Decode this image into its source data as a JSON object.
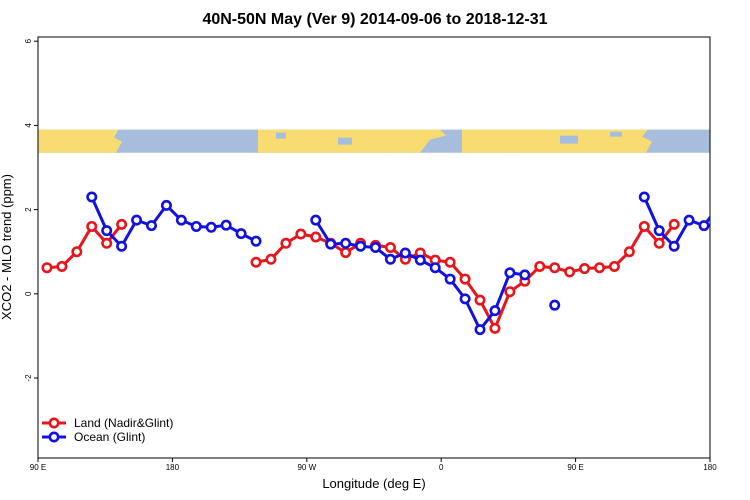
{
  "chart_data": {
    "type": "line",
    "title": "40N-50N May (Ver 9)   2014-09-06 to 2018-12-31",
    "xlabel": "Longitude (deg E)",
    "ylabel": "XCO2 - MLO trend (ppm)",
    "x_ticks": [
      {
        "value": 90,
        "label": "90 E"
      },
      {
        "value": 180,
        "label": "180"
      },
      {
        "value": 270,
        "label": "90 W"
      },
      {
        "value": 360,
        "label": "0"
      },
      {
        "value": 450,
        "label": "90 E"
      },
      {
        "value": 540,
        "label": "180"
      }
    ],
    "y_ticks": [
      {
        "value": 6,
        "label": "6"
      },
      {
        "value": 4,
        "label": "4"
      },
      {
        "value": 2,
        "label": "2"
      },
      {
        "value": 0,
        "label": "0"
      },
      {
        "value": -2,
        "label": "-2"
      }
    ],
    "xlim": [
      90,
      540
    ],
    "ylim": [
      -3.9,
      6.1
    ],
    "grid": false,
    "legend_position": "bottom-left",
    "map_strip": {
      "ymin": 3.35,
      "ymax": 3.9,
      "ocean_color": "#A6BDDB",
      "land_color": "#F8DC72"
    },
    "series": [
      {
        "name": "Land (Nadir&Glint)",
        "color": "#E8151B",
        "segments": [
          [
            [
              96,
              0.62
            ],
            [
              106,
              0.65
            ],
            [
              116,
              1.0
            ],
            [
              126,
              1.6
            ],
            [
              136,
              1.2
            ],
            [
              146,
              1.65
            ]
          ],
          [
            [
              236,
              0.75
            ],
            [
              246,
              0.82
            ],
            [
              256,
              1.2
            ],
            [
              266,
              1.42
            ],
            [
              276,
              1.35
            ],
            [
              286,
              1.2
            ],
            [
              296,
              0.98
            ],
            [
              306,
              1.2
            ]
          ],
          [
            [
              316,
              1.15
            ],
            [
              326,
              1.1
            ],
            [
              336,
              0.82
            ],
            [
              346,
              0.97
            ],
            [
              356,
              0.8
            ],
            [
              366,
              0.75
            ],
            [
              376,
              0.35
            ],
            [
              386,
              -0.15
            ],
            [
              396,
              -0.82
            ],
            [
              406,
              0.05
            ],
            [
              416,
              0.3
            ],
            [
              426,
              0.65
            ],
            [
              436,
              0.62
            ],
            [
              446,
              0.52
            ],
            [
              456,
              0.6
            ],
            [
              466,
              0.62
            ],
            [
              476,
              0.65
            ],
            [
              486,
              1.0
            ],
            [
              496,
              1.6
            ],
            [
              506,
              1.2
            ],
            [
              516,
              1.65
            ]
          ]
        ]
      },
      {
        "name": "Ocean (Glint)",
        "color": "#1111E0",
        "segments": [
          [
            [
              126,
              2.3
            ],
            [
              136,
              1.5
            ],
            [
              146,
              1.13
            ],
            [
              156,
              1.75
            ],
            [
              166,
              1.62
            ],
            [
              176,
              2.1
            ],
            [
              186,
              1.75
            ],
            [
              196,
              1.6
            ],
            [
              206,
              1.58
            ],
            [
              216,
              1.63
            ],
            [
              226,
              1.43
            ],
            [
              236,
              1.25
            ]
          ],
          [
            [
              276,
              1.75
            ],
            [
              286,
              1.18
            ],
            [
              296,
              1.2
            ],
            [
              306,
              1.13
            ],
            [
              316,
              1.1
            ],
            [
              326,
              0.82
            ],
            [
              336,
              0.97
            ],
            [
              346,
              0.8
            ],
            [
              356,
              0.62
            ],
            [
              366,
              0.35
            ],
            [
              376,
              -0.12
            ],
            [
              386,
              -0.85
            ],
            [
              396,
              -0.4
            ],
            [
              406,
              0.5
            ],
            [
              416,
              0.45
            ]
          ],
          [
            [
              436,
              -0.27
            ]
          ],
          [
            [
              496,
              2.3
            ],
            [
              506,
              1.5
            ],
            [
              516,
              1.13
            ],
            [
              526,
              1.75
            ],
            [
              536,
              1.62
            ],
            [
              546,
              2.1
            ]
          ]
        ]
      }
    ]
  }
}
